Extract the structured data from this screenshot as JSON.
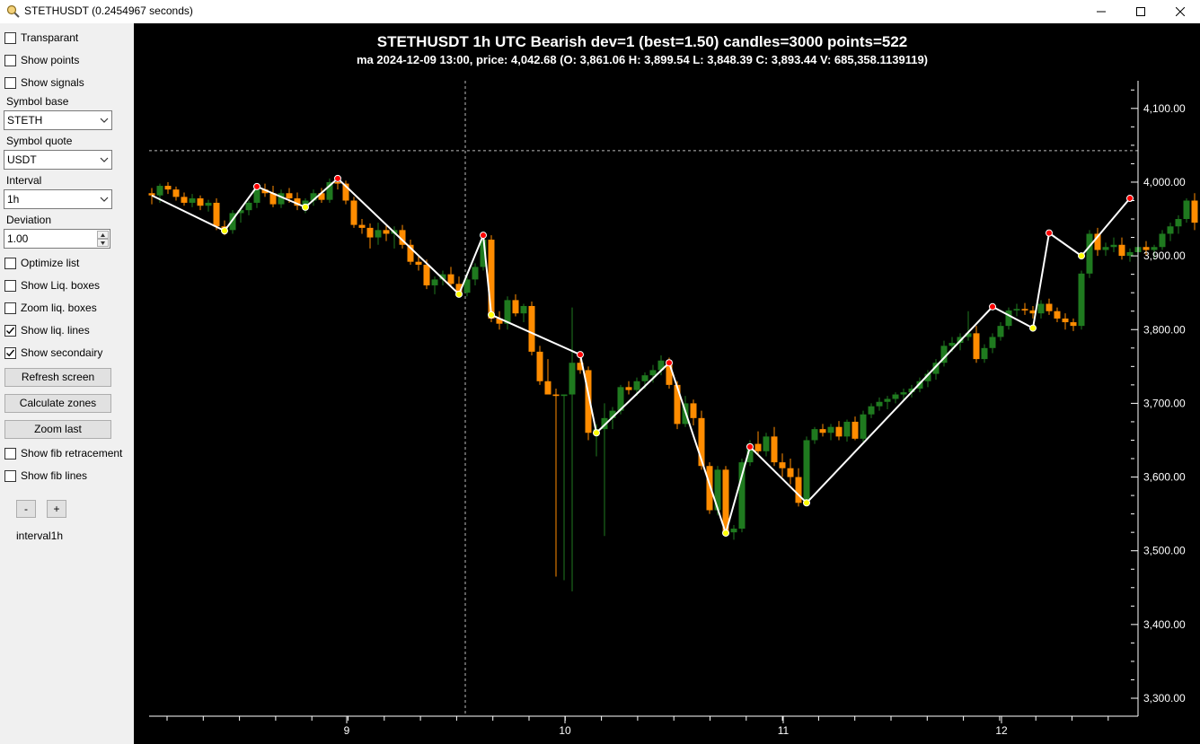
{
  "window": {
    "title": "STETHUSDT (0.2454967 seconds)",
    "app_icon": "magnifier-icon",
    "controls": [
      "minimize-icon",
      "maximize-icon",
      "close-icon"
    ]
  },
  "sidebar": {
    "checkboxes_top": [
      {
        "label": "Transparant",
        "checked": false
      },
      {
        "label": "Show points",
        "checked": false
      },
      {
        "label": "Show signals",
        "checked": false
      }
    ],
    "symbol_base": {
      "label": "Symbol base",
      "value": "STETH"
    },
    "symbol_quote": {
      "label": "Symbol quote",
      "value": "USDT"
    },
    "interval": {
      "label": "Interval",
      "value": "1h"
    },
    "deviation": {
      "label": "Deviation",
      "value": "1.00"
    },
    "checkboxes_mid": [
      {
        "label": "Optimize list",
        "checked": false
      },
      {
        "label": "Show Liq. boxes",
        "checked": false
      },
      {
        "label": "Zoom liq. boxes",
        "checked": false
      },
      {
        "label": "Show liq. lines",
        "checked": true
      },
      {
        "label": "Show secondairy",
        "checked": true
      }
    ],
    "buttons": [
      "Refresh screen",
      "Calculate zones",
      "Zoom last"
    ],
    "checkboxes_bottom": [
      {
        "label": "Show fib retracement",
        "checked": false
      },
      {
        "label": "Show fib lines",
        "checked": false
      }
    ],
    "zoom_minus": "-",
    "zoom_plus": "+",
    "status": "interval1h"
  },
  "chart_data": {
    "type": "candlestick",
    "title": "STETHUSDT 1h UTC Bearish dev=1 (best=1.50) candles=3000 points=522",
    "subtitle": "ma 2024-12-09 13:00, price: 4,042.68 (O: 3,861.06 H: 3,899.54 L: 3,848.39 C: 3,893.44 V: 685,358.1139119)",
    "x_ticks": [
      "9",
      "10",
      "11",
      "12"
    ],
    "y_ticks": [
      "3,300.00",
      "3,400.00",
      "3,500.00",
      "3,600.00",
      "3,700.00",
      "3,800.00",
      "3,900.00",
      "4,000.00",
      "4,100.00"
    ],
    "ylim": [
      3275,
      4145
    ],
    "crosshair_price": 4042.68,
    "colors": {
      "up": "#1f7a1f",
      "down": "#ff8c00",
      "line": "#ffffff",
      "high_point": "#ff0000",
      "low_point": "#ffff00",
      "axis_text": "#ffffff"
    },
    "candles": [
      [
        3985,
        3992,
        3970,
        3982
      ],
      [
        3982,
        3998,
        3972,
        3995
      ],
      [
        3995,
        4000,
        3984,
        3990
      ],
      [
        3990,
        3994,
        3975,
        3980
      ],
      [
        3980,
        3986,
        3968,
        3972
      ],
      [
        3972,
        3984,
        3966,
        3978
      ],
      [
        3978,
        3982,
        3962,
        3968
      ],
      [
        3968,
        3976,
        3960,
        3972
      ],
      [
        3972,
        3978,
        3935,
        3940
      ],
      [
        3940,
        3948,
        3928,
        3935
      ],
      [
        3935,
        3962,
        3930,
        3958
      ],
      [
        3958,
        3965,
        3945,
        3962
      ],
      [
        3962,
        3975,
        3955,
        3972
      ],
      [
        3972,
        3992,
        3965,
        3990
      ],
      [
        3990,
        3998,
        3980,
        3985
      ],
      [
        3985,
        3995,
        3966,
        3970
      ],
      [
        3970,
        3990,
        3965,
        3985
      ],
      [
        3985,
        3992,
        3972,
        3978
      ],
      [
        3978,
        3986,
        3962,
        3968
      ],
      [
        3968,
        3978,
        3958,
        3975
      ],
      [
        3975,
        3990,
        3968,
        3985
      ],
      [
        3985,
        3992,
        3972,
        3976
      ],
      [
        3976,
        4005,
        3972,
        4000
      ],
      [
        4000,
        4008,
        3990,
        3998
      ],
      [
        3998,
        4002,
        3970,
        3975
      ],
      [
        3975,
        3980,
        3938,
        3942
      ],
      [
        3942,
        3950,
        3930,
        3938
      ],
      [
        3938,
        3944,
        3910,
        3925
      ],
      [
        3925,
        3945,
        3915,
        3935
      ],
      [
        3935,
        3942,
        3920,
        3930
      ],
      [
        3930,
        3940,
        3910,
        3935
      ],
      [
        3935,
        3942,
        3910,
        3915
      ],
      [
        3915,
        3922,
        3888,
        3892
      ],
      [
        3892,
        3900,
        3880,
        3888
      ],
      [
        3888,
        3895,
        3855,
        3860
      ],
      [
        3860,
        3872,
        3848,
        3868
      ],
      [
        3868,
        3880,
        3860,
        3875
      ],
      [
        3875,
        3885,
        3858,
        3862
      ],
      [
        3862,
        3872,
        3845,
        3850
      ],
      [
        3850,
        3878,
        3845,
        3868
      ],
      [
        3868,
        3890,
        3860,
        3885
      ],
      [
        3885,
        3925,
        3880,
        3922
      ],
      [
        3922,
        3928,
        3810,
        3815
      ],
      [
        3815,
        3825,
        3800,
        3808
      ],
      [
        3808,
        3845,
        3800,
        3840
      ],
      [
        3840,
        3848,
        3818,
        3822
      ],
      [
        3822,
        3835,
        3810,
        3832
      ],
      [
        3832,
        3838,
        3765,
        3770
      ],
      [
        3770,
        3778,
        3725,
        3730
      ],
      [
        3730,
        3760,
        3712,
        3712
      ],
      [
        3712,
        3720,
        3465,
        3710
      ],
      [
        3710,
        3712,
        3460,
        3712
      ],
      [
        3712,
        3830,
        3445,
        3755
      ],
      [
        3755,
        3765,
        3740,
        3745
      ],
      [
        3745,
        3750,
        3650,
        3660
      ],
      [
        3660,
        3672,
        3628,
        3665
      ],
      [
        3665,
        3700,
        3520,
        3680
      ],
      [
        3680,
        3695,
        3665,
        3690
      ],
      [
        3690,
        3725,
        3685,
        3722
      ],
      [
        3722,
        3730,
        3712,
        3718
      ],
      [
        3718,
        3735,
        3710,
        3730
      ],
      [
        3730,
        3742,
        3720,
        3738
      ],
      [
        3738,
        3752,
        3728,
        3745
      ],
      [
        3745,
        3765,
        3738,
        3758
      ],
      [
        3758,
        3762,
        3720,
        3725
      ],
      [
        3725,
        3730,
        3665,
        3672
      ],
      [
        3672,
        3710,
        3668,
        3700
      ],
      [
        3700,
        3705,
        3670,
        3680
      ],
      [
        3680,
        3690,
        3610,
        3615
      ],
      [
        3615,
        3620,
        3550,
        3555
      ],
      [
        3555,
        3615,
        3548,
        3610
      ],
      [
        3610,
        3615,
        3520,
        3525
      ],
      [
        3525,
        3535,
        3515,
        3530
      ],
      [
        3530,
        3625,
        3525,
        3620
      ],
      [
        3620,
        3650,
        3615,
        3645
      ],
      [
        3645,
        3662,
        3630,
        3635
      ],
      [
        3635,
        3660,
        3628,
        3655
      ],
      [
        3655,
        3668,
        3615,
        3620
      ],
      [
        3620,
        3632,
        3600,
        3612
      ],
      [
        3612,
        3625,
        3590,
        3600
      ],
      [
        3600,
        3612,
        3560,
        3565
      ],
      [
        3565,
        3655,
        3560,
        3650
      ],
      [
        3650,
        3668,
        3645,
        3665
      ],
      [
        3665,
        3672,
        3655,
        3660
      ],
      [
        3660,
        3672,
        3650,
        3668
      ],
      [
        3668,
        3676,
        3650,
        3655
      ],
      [
        3655,
        3678,
        3648,
        3675
      ],
      [
        3675,
        3682,
        3650,
        3652
      ],
      [
        3652,
        3690,
        3648,
        3685
      ],
      [
        3685,
        3700,
        3680,
        3696
      ],
      [
        3696,
        3708,
        3690,
        3702
      ],
      [
        3702,
        3710,
        3692,
        3706
      ],
      [
        3706,
        3715,
        3700,
        3712
      ],
      [
        3712,
        3720,
        3705,
        3715
      ],
      [
        3715,
        3725,
        3708,
        3720
      ],
      [
        3720,
        3735,
        3715,
        3730
      ],
      [
        3730,
        3745,
        3722,
        3740
      ],
      [
        3740,
        3760,
        3732,
        3755
      ],
      [
        3755,
        3785,
        3750,
        3778
      ],
      [
        3778,
        3790,
        3770,
        3782
      ],
      [
        3782,
        3795,
        3772,
        3790
      ],
      [
        3790,
        3825,
        3785,
        3795
      ],
      [
        3795,
        3805,
        3755,
        3760
      ],
      [
        3760,
        3780,
        3755,
        3775
      ],
      [
        3775,
        3795,
        3768,
        3790
      ],
      [
        3790,
        3810,
        3785,
        3805
      ],
      [
        3805,
        3830,
        3800,
        3826
      ],
      [
        3826,
        3835,
        3818,
        3828
      ],
      [
        3828,
        3836,
        3820,
        3826
      ],
      [
        3826,
        3832,
        3815,
        3822
      ],
      [
        3822,
        3840,
        3815,
        3835
      ],
      [
        3835,
        3842,
        3820,
        3825
      ],
      [
        3825,
        3830,
        3810,
        3815
      ],
      [
        3815,
        3822,
        3800,
        3810
      ],
      [
        3810,
        3815,
        3798,
        3805
      ],
      [
        3805,
        3880,
        3800,
        3876
      ],
      [
        3876,
        3935,
        3870,
        3930
      ],
      [
        3930,
        3938,
        3900,
        3908
      ],
      [
        3908,
        3918,
        3900,
        3912
      ],
      [
        3912,
        3925,
        3905,
        3915
      ],
      [
        3915,
        3925,
        3895,
        3900
      ],
      [
        3900,
        3910,
        3892,
        3905
      ],
      [
        3905,
        3918,
        3898,
        3912
      ],
      [
        3912,
        3920,
        3900,
        3908
      ],
      [
        3908,
        3915,
        3895,
        3912
      ],
      [
        3912,
        3935,
        3908,
        3930
      ],
      [
        3930,
        3945,
        3920,
        3940
      ],
      [
        3940,
        3955,
        3930,
        3950
      ],
      [
        3950,
        3978,
        3945,
        3975
      ],
      [
        3975,
        3985,
        3935,
        3945
      ]
    ],
    "swing_points": [
      {
        "i": 0,
        "v": 3982,
        "type": "start"
      },
      {
        "i": 9,
        "v": 3934,
        "type": "low"
      },
      {
        "i": 13,
        "v": 3994,
        "type": "high"
      },
      {
        "i": 19,
        "v": 3966,
        "type": "low"
      },
      {
        "i": 23,
        "v": 4005,
        "type": "high"
      },
      {
        "i": 38,
        "v": 3848,
        "type": "low"
      },
      {
        "i": 41,
        "v": 3928,
        "type": "high"
      },
      {
        "i": 42,
        "v": 3820,
        "type": "low"
      },
      {
        "i": 53,
        "v": 3766,
        "type": "high"
      },
      {
        "i": 55,
        "v": 3660,
        "type": "low"
      },
      {
        "i": 64,
        "v": 3755,
        "type": "high"
      },
      {
        "i": 71,
        "v": 3524,
        "type": "low"
      },
      {
        "i": 74,
        "v": 3641,
        "type": "high"
      },
      {
        "i": 81,
        "v": 3565,
        "type": "low"
      },
      {
        "i": 104,
        "v": 3831,
        "type": "high"
      },
      {
        "i": 109,
        "v": 3802,
        "type": "low"
      },
      {
        "i": 111,
        "v": 3931,
        "type": "high"
      },
      {
        "i": 115,
        "v": 3900,
        "type": "low"
      },
      {
        "i": 121,
        "v": 3978,
        "type": "high"
      }
    ]
  }
}
